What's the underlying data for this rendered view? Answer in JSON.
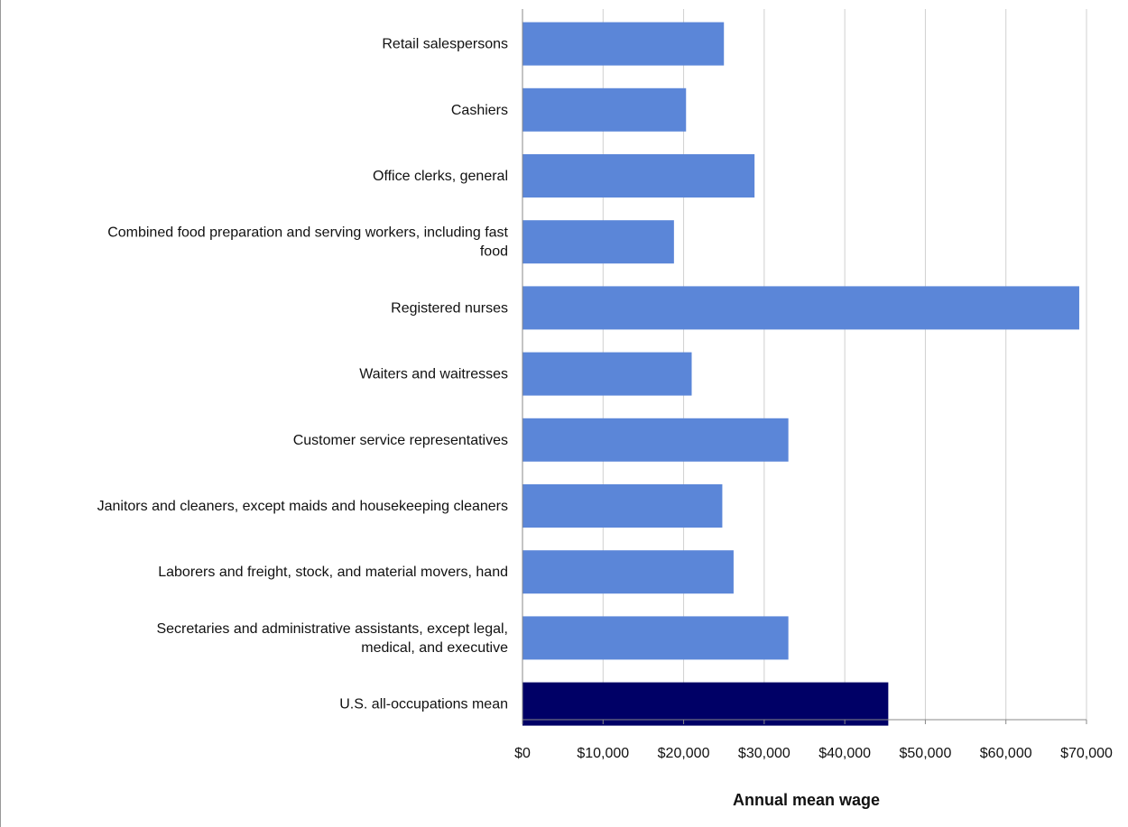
{
  "chart_data": {
    "type": "bar",
    "orientation": "horizontal",
    "title": "",
    "xlabel": "Annual mean wage",
    "ylabel": "",
    "xlim": [
      0,
      70000
    ],
    "x_ticks": [
      0,
      10000,
      20000,
      30000,
      40000,
      50000,
      60000,
      70000
    ],
    "x_tick_labels": [
      "$0",
      "$10,000",
      "$20,000",
      "$30,000",
      "$40,000",
      "$50,000",
      "$60,000",
      "$70,000"
    ],
    "grid": true,
    "categories": [
      [
        "Retail salespersons"
      ],
      [
        "Cashiers"
      ],
      [
        "Office clerks, general"
      ],
      [
        "Combined food preparation and serving workers, including fast",
        "food"
      ],
      [
        "Registered nurses"
      ],
      [
        "Waiters and waitresses"
      ],
      [
        "Customer service representatives"
      ],
      [
        "Janitors and cleaners, except maids and housekeeping cleaners"
      ],
      [
        "Laborers and freight, stock, and material movers, hand"
      ],
      [
        "Secretaries and administrative assistants, except legal,",
        "medical, and executive"
      ],
      [
        "U.S. all-occupations mean"
      ]
    ],
    "values": [
      25000,
      20300,
      28800,
      18800,
      69100,
      21000,
      33000,
      24800,
      26200,
      33000,
      45400
    ],
    "colors": [
      "#5b86d8",
      "#5b86d8",
      "#5b86d8",
      "#5b86d8",
      "#5b86d8",
      "#5b86d8",
      "#5b86d8",
      "#5b86d8",
      "#5b86d8",
      "#5b86d8",
      "#000066"
    ],
    "grid_color": "#d0d0d0",
    "axis_color": "#888888"
  }
}
